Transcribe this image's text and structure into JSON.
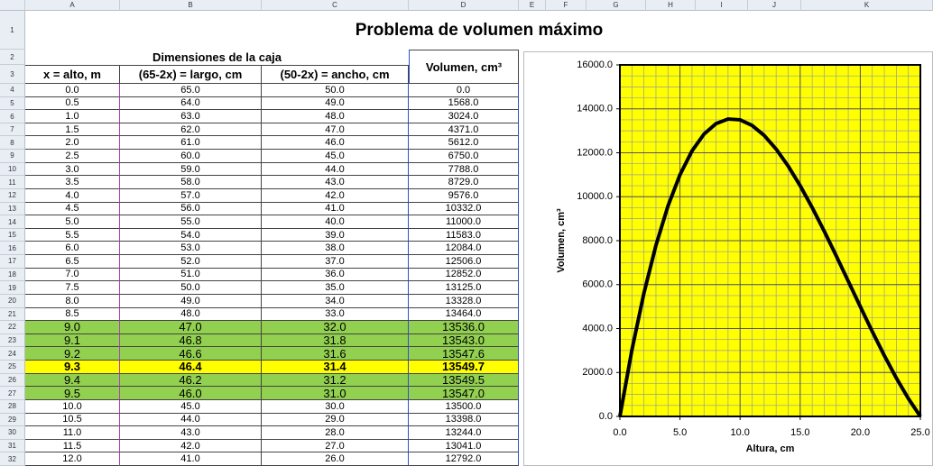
{
  "sheet": {
    "column_headers": [
      "A",
      "B",
      "C",
      "D",
      "E",
      "F",
      "G",
      "H",
      "I",
      "J",
      "K"
    ],
    "row_headers": [
      "1",
      "2",
      "3",
      "4",
      "5",
      "6",
      "7",
      "8",
      "9",
      "10",
      "11",
      "12",
      "13",
      "14",
      "15",
      "16",
      "17",
      "18",
      "19",
      "20",
      "21",
      "22",
      "23",
      "24",
      "25",
      "26",
      "27",
      "28",
      "29",
      "30",
      "31",
      "32"
    ],
    "title": "Problema de volumen máximo",
    "group_header": "Dimensiones de la caja",
    "headers": [
      "x = alto, m",
      "(65-2x) = largo, cm",
      "(50-2x) = ancho, cm",
      "Volumen, cm³"
    ],
    "rows": [
      {
        "cells": [
          "0.0",
          "65.0",
          "50.0",
          "0.0"
        ]
      },
      {
        "cells": [
          "0.5",
          "64.0",
          "49.0",
          "1568.0"
        ]
      },
      {
        "cells": [
          "1.0",
          "63.0",
          "48.0",
          "3024.0"
        ]
      },
      {
        "cells": [
          "1.5",
          "62.0",
          "47.0",
          "4371.0"
        ]
      },
      {
        "cells": [
          "2.0",
          "61.0",
          "46.0",
          "5612.0"
        ]
      },
      {
        "cells": [
          "2.5",
          "60.0",
          "45.0",
          "6750.0"
        ]
      },
      {
        "cells": [
          "3.0",
          "59.0",
          "44.0",
          "7788.0"
        ]
      },
      {
        "cells": [
          "3.5",
          "58.0",
          "43.0",
          "8729.0"
        ]
      },
      {
        "cells": [
          "4.0",
          "57.0",
          "42.0",
          "9576.0"
        ]
      },
      {
        "cells": [
          "4.5",
          "56.0",
          "41.0",
          "10332.0"
        ]
      },
      {
        "cells": [
          "5.0",
          "55.0",
          "40.0",
          "11000.0"
        ]
      },
      {
        "cells": [
          "5.5",
          "54.0",
          "39.0",
          "11583.0"
        ]
      },
      {
        "cells": [
          "6.0",
          "53.0",
          "38.0",
          "12084.0"
        ]
      },
      {
        "cells": [
          "6.5",
          "52.0",
          "37.0",
          "12506.0"
        ]
      },
      {
        "cells": [
          "7.0",
          "51.0",
          "36.0",
          "12852.0"
        ]
      },
      {
        "cells": [
          "7.5",
          "50.0",
          "35.0",
          "13125.0"
        ]
      },
      {
        "cells": [
          "8.0",
          "49.0",
          "34.0",
          "13328.0"
        ]
      },
      {
        "cells": [
          "8.5",
          "48.0",
          "33.0",
          "13464.0"
        ]
      },
      {
        "cells": [
          "9.0",
          "47.0",
          "32.0",
          "13536.0"
        ],
        "fill": "#92d050"
      },
      {
        "cells": [
          "9.1",
          "46.8",
          "31.8",
          "13543.0"
        ],
        "fill": "#92d050"
      },
      {
        "cells": [
          "9.2",
          "46.6",
          "31.6",
          "13547.6"
        ],
        "fill": "#92d050"
      },
      {
        "cells": [
          "9.3",
          "46.4",
          "31.4",
          "13549.7"
        ],
        "fill": "#ffff00",
        "bold": true
      },
      {
        "cells": [
          "9.4",
          "46.2",
          "31.2",
          "13549.5"
        ],
        "fill": "#92d050"
      },
      {
        "cells": [
          "9.5",
          "46.0",
          "31.0",
          "13547.0"
        ],
        "fill": "#92d050"
      },
      {
        "cells": [
          "10.0",
          "45.0",
          "30.0",
          "13500.0"
        ]
      },
      {
        "cells": [
          "10.5",
          "44.0",
          "29.0",
          "13398.0"
        ]
      },
      {
        "cells": [
          "11.0",
          "43.0",
          "28.0",
          "13244.0"
        ]
      },
      {
        "cells": [
          "11.5",
          "42.0",
          "27.0",
          "13041.0"
        ]
      },
      {
        "cells": [
          "12.0",
          "41.0",
          "26.0",
          "12792.0"
        ]
      }
    ]
  },
  "chart_data": {
    "type": "line",
    "xlabel": "Altura, cm",
    "ylabel": "Volumen, cm³",
    "x": [
      0,
      1,
      2,
      3,
      4,
      5,
      6,
      7,
      8,
      9,
      10,
      11,
      12,
      13,
      14,
      15,
      16,
      17,
      18,
      19,
      20,
      21,
      22,
      23,
      24,
      25
    ],
    "series": [
      {
        "color": "#000000",
        "values": [
          0,
          3024,
          5612,
          7788,
          9576,
          11000,
          12084,
          12852,
          13328,
          13536,
          13500,
          13244,
          12792,
          12168,
          11396,
          10500,
          9504,
          8432,
          7308,
          6156,
          5000,
          3864,
          2772,
          1748,
          816,
          0
        ]
      }
    ],
    "xlim": [
      0,
      25
    ],
    "ylim": [
      0,
      16000
    ],
    "xticks": [
      {
        "value": 0,
        "label": "0.0"
      },
      {
        "value": 5,
        "label": "5.0"
      },
      {
        "value": 10,
        "label": "10.0"
      },
      {
        "value": 15,
        "label": "15.0"
      },
      {
        "value": 20,
        "label": "20.0"
      },
      {
        "value": 25,
        "label": "25.0"
      }
    ],
    "yticks": [
      {
        "value": 0,
        "label": "0.0"
      },
      {
        "value": 2000,
        "label": "2000.0"
      },
      {
        "value": 4000,
        "label": "4000.0"
      },
      {
        "value": 6000,
        "label": "6000.0"
      },
      {
        "value": 8000,
        "label": "8000.0"
      },
      {
        "value": 10000,
        "label": "10000.0"
      },
      {
        "value": 12000,
        "label": "12000.0"
      },
      {
        "value": 14000,
        "label": "14000.0"
      },
      {
        "value": 16000,
        "label": "16000.0"
      }
    ],
    "plot_background": "#ffff00",
    "grid": true,
    "minor_grid": {
      "x": 1,
      "y": 500
    }
  }
}
